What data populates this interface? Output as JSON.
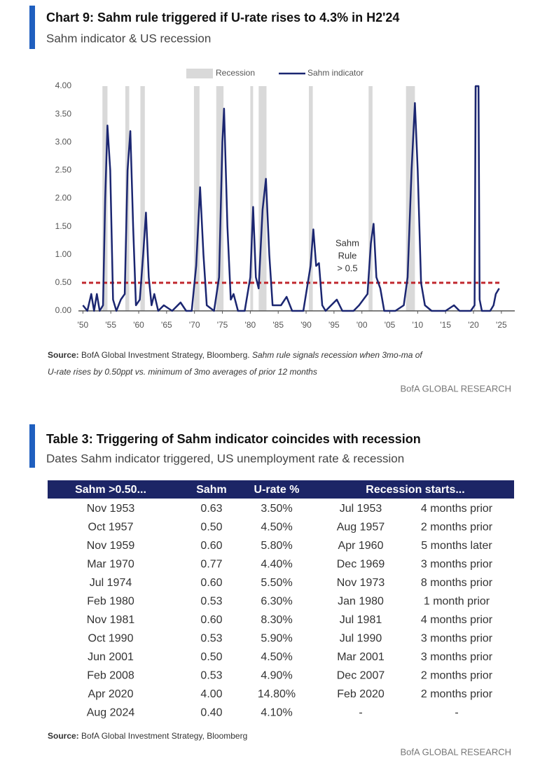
{
  "chart_data": {
    "type": "line",
    "title": "Chart 9: Sahm rule triggered if U-rate rises to 4.3% in H2'24",
    "subtitle": "Sahm indicator & US recession",
    "x": [
      1950.0,
      1950.8,
      1951.5,
      1952.0,
      1952.5,
      1953.0,
      1953.6,
      1954.0,
      1954.4,
      1954.9,
      1955.4,
      1956.0,
      1956.8,
      1957.5,
      1958.0,
      1958.5,
      1959.0,
      1959.5,
      1960.2,
      1960.8,
      1961.3,
      1961.8,
      1962.3,
      1962.8,
      1963.5,
      1964.5,
      1966.0,
      1967.5,
      1968.5,
      1969.5,
      1970.3,
      1971.0,
      1971.6,
      1972.2,
      1973.5,
      1974.4,
      1975.0,
      1975.3,
      1975.9,
      1976.5,
      1977.0,
      1977.8,
      1979.0,
      1980.0,
      1980.5,
      1981.0,
      1981.5,
      1982.2,
      1982.8,
      1983.4,
      1984.0,
      1985.5,
      1986.5,
      1987.5,
      1989.5,
      1990.8,
      1991.3,
      1991.8,
      1992.3,
      1992.9,
      1993.5,
      1995.5,
      1996.5,
      1998.5,
      1999.5,
      2001.0,
      2001.6,
      2002.1,
      2002.6,
      2003.3,
      2004.0,
      2006.0,
      2007.5,
      2008.2,
      2008.9,
      2009.5,
      2010.0,
      2010.6,
      2011.3,
      2012.5,
      2015.0,
      2016.5,
      2017.5,
      2019.5,
      2020.2,
      2020.4,
      2020.9,
      2021.1,
      2021.5,
      2023.0,
      2023.6,
      2024.0,
      2024.6
    ],
    "series": [
      {
        "name": "Sahm indicator",
        "color": "#1b2671",
        "values": [
          0.1,
          0.0,
          0.3,
          0.0,
          0.3,
          0.0,
          0.1,
          2.0,
          3.3,
          2.5,
          0.2,
          0.0,
          0.2,
          0.3,
          2.5,
          3.2,
          1.5,
          0.1,
          0.2,
          1.0,
          1.75,
          0.6,
          0.1,
          0.3,
          0.0,
          0.1,
          0.0,
          0.15,
          0.0,
          0.0,
          0.8,
          2.2,
          1.0,
          0.1,
          0.0,
          0.6,
          3.0,
          3.6,
          1.5,
          0.2,
          0.3,
          0.0,
          0.0,
          0.6,
          1.85,
          0.6,
          0.4,
          1.8,
          2.35,
          1.0,
          0.1,
          0.1,
          0.25,
          0.0,
          0.0,
          0.8,
          1.45,
          0.8,
          0.85,
          0.1,
          0.0,
          0.2,
          0.0,
          0.0,
          0.1,
          0.3,
          1.2,
          1.55,
          0.6,
          0.4,
          0.0,
          0.0,
          0.1,
          0.6,
          2.5,
          3.7,
          2.5,
          0.5,
          0.1,
          0.0,
          0.0,
          0.1,
          0.0,
          0.0,
          0.1,
          4.0,
          4.0,
          0.2,
          0.0,
          0.0,
          0.1,
          0.3,
          0.4
        ]
      }
    ],
    "recessions": {
      "name": "Recession",
      "color": "#d9d9d9",
      "spans": [
        [
          1953.5,
          1954.4
        ],
        [
          1957.6,
          1958.3
        ],
        [
          1960.3,
          1961.1
        ],
        [
          1969.9,
          1970.9
        ],
        [
          1973.9,
          1975.2
        ],
        [
          1980.0,
          1980.5
        ],
        [
          1981.5,
          1982.9
        ],
        [
          1990.5,
          1991.2
        ],
        [
          2001.2,
          2001.9
        ],
        [
          2007.9,
          2009.5
        ],
        [
          2020.1,
          2020.3
        ]
      ]
    },
    "threshold": {
      "value": 0.5,
      "color": "#c0272d",
      "label_lines": [
        "Sahm",
        "Rule",
        "> 0.5"
      ]
    },
    "xlim": [
      1949.2,
      2027.4
    ],
    "xticks": [
      {
        "value": 1950,
        "label": "'50"
      },
      {
        "value": 1955,
        "label": "'55"
      },
      {
        "value": 1960,
        "label": "'60"
      },
      {
        "value": 1965,
        "label": "'65"
      },
      {
        "value": 1970,
        "label": "'70"
      },
      {
        "value": 1975,
        "label": "'75"
      },
      {
        "value": 1980,
        "label": "'80"
      },
      {
        "value": 1985,
        "label": "'85"
      },
      {
        "value": 1990,
        "label": "'90"
      },
      {
        "value": 1995,
        "label": "'95"
      },
      {
        "value": 2000,
        "label": "'00"
      },
      {
        "value": 2005,
        "label": "'05"
      },
      {
        "value": 2010,
        "label": "'10"
      },
      {
        "value": 2015,
        "label": "'15"
      },
      {
        "value": 2020,
        "label": "'20"
      },
      {
        "value": 2025,
        "label": "'25"
      }
    ],
    "ylim": [
      0,
      4
    ],
    "yticks": [
      {
        "value": 0,
        "label": "0.00"
      },
      {
        "value": 0.5,
        "label": "0.50"
      },
      {
        "value": 1,
        "label": "1.00"
      },
      {
        "value": 1.5,
        "label": "1.50"
      },
      {
        "value": 2,
        "label": "2.00"
      },
      {
        "value": 2.5,
        "label": "2.50"
      },
      {
        "value": 3,
        "label": "3.00"
      },
      {
        "value": 3.5,
        "label": "3.50"
      },
      {
        "value": 4,
        "label": "4.00"
      }
    ],
    "source": {
      "label": "Source:",
      "text": "BofA Global Investment Strategy, Bloomberg.",
      "note_lines": [
        "Sahm rule signals recession when 3mo-ma of",
        "U-rate rises by 0.50ppt vs. minimum of 3mo averages of prior 12 months"
      ]
    },
    "footer": "BofA GLOBAL RESEARCH"
  },
  "table": {
    "title": "Table 3: Triggering of Sahm indicator coincides with recession",
    "subtitle": "Dates Sahm indicator triggered, US unemployment rate & recession",
    "header": [
      "Sahm >0.50...",
      "Sahm",
      "U-rate %",
      "Recession starts..."
    ],
    "rows": [
      [
        "Nov 1953",
        "0.63",
        "3.50%",
        "Jul 1953",
        "4 months prior"
      ],
      [
        "Oct 1957",
        "0.50",
        "4.50%",
        "Aug 1957",
        "2 months prior"
      ],
      [
        "Nov 1959",
        "0.60",
        "5.80%",
        "Apr 1960",
        "5 months later"
      ],
      [
        "Mar 1970",
        "0.77",
        "4.40%",
        "Dec 1969",
        "3 months prior"
      ],
      [
        "Jul 1974",
        "0.60",
        "5.50%",
        "Nov 1973",
        "8 months prior"
      ],
      [
        "Feb 1980",
        "0.53",
        "6.30%",
        "Jan 1980",
        "1 month prior"
      ],
      [
        "Nov 1981",
        "0.60",
        "8.30%",
        "Jul 1981",
        "4 months prior"
      ],
      [
        "Oct 1990",
        "0.53",
        "5.90%",
        "Jul 1990",
        "3 months prior"
      ],
      [
        "Jun 2001",
        "0.50",
        "4.50%",
        "Mar 2001",
        "3 months prior"
      ],
      [
        "Feb 2008",
        "0.53",
        "4.90%",
        "Dec 2007",
        "2 months prior"
      ],
      [
        "Apr 2020",
        "4.00",
        "14.80%",
        "Feb 2020",
        "2 months prior"
      ],
      [
        "Aug 2024",
        "0.40",
        "4.10%",
        "-",
        "-"
      ]
    ],
    "source": {
      "label": "Source:",
      "text": "BofA Global Investment Strategy, Bloomberg"
    },
    "footer": "BofA GLOBAL RESEARCH"
  }
}
